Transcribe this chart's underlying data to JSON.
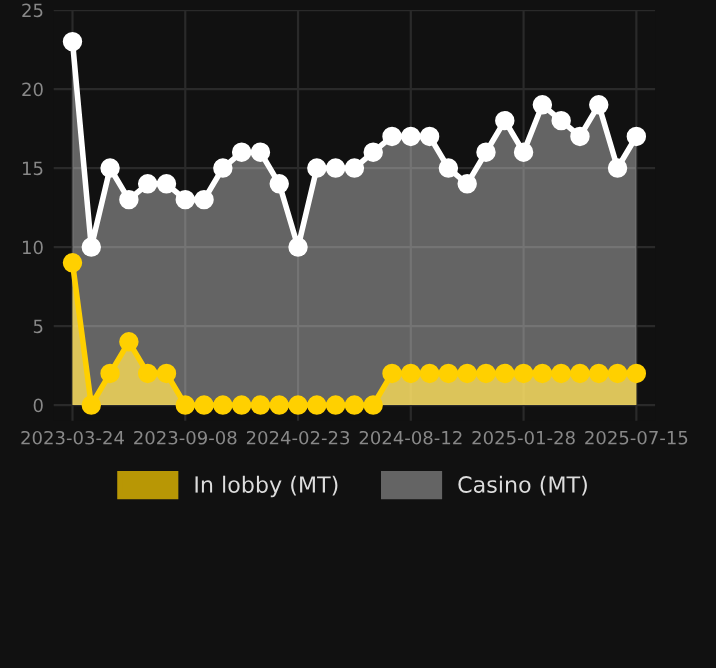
{
  "chart_data": {
    "type": "area",
    "categories": [
      "2023-03-24",
      null,
      null,
      null,
      null,
      null,
      "2023-09-08",
      null,
      null,
      null,
      null,
      null,
      "2024-02-23",
      null,
      null,
      null,
      null,
      null,
      "2024-08-12",
      null,
      null,
      null,
      null,
      null,
      "2025-01-28",
      null,
      null,
      null,
      null,
      null,
      "2025-07-15"
    ],
    "series": [
      {
        "name": "In lobby (MT)",
        "color": "#ffd000",
        "values": [
          9,
          0,
          2,
          4,
          2,
          2,
          0,
          0,
          0,
          0,
          0,
          0,
          0,
          0,
          0,
          0,
          0,
          2,
          2,
          2,
          2,
          2,
          2,
          2,
          2,
          2,
          2,
          2,
          2,
          2,
          2
        ]
      },
      {
        "name": "Casino (MT)",
        "color": "#ffffff",
        "values": [
          23,
          10,
          15,
          13,
          14,
          14,
          13,
          13,
          15,
          16,
          16,
          14,
          10,
          15,
          15,
          15,
          16,
          17,
          17,
          17,
          15,
          14,
          16,
          18,
          16,
          19,
          18,
          17,
          19,
          15,
          17
        ]
      }
    ],
    "ylim": [
      -1,
      25
    ],
    "yticks": [
      0,
      5,
      10,
      15,
      20,
      25
    ],
    "grid": true,
    "legend": "bottom",
    "marker": "circle",
    "line_style": "solid"
  }
}
